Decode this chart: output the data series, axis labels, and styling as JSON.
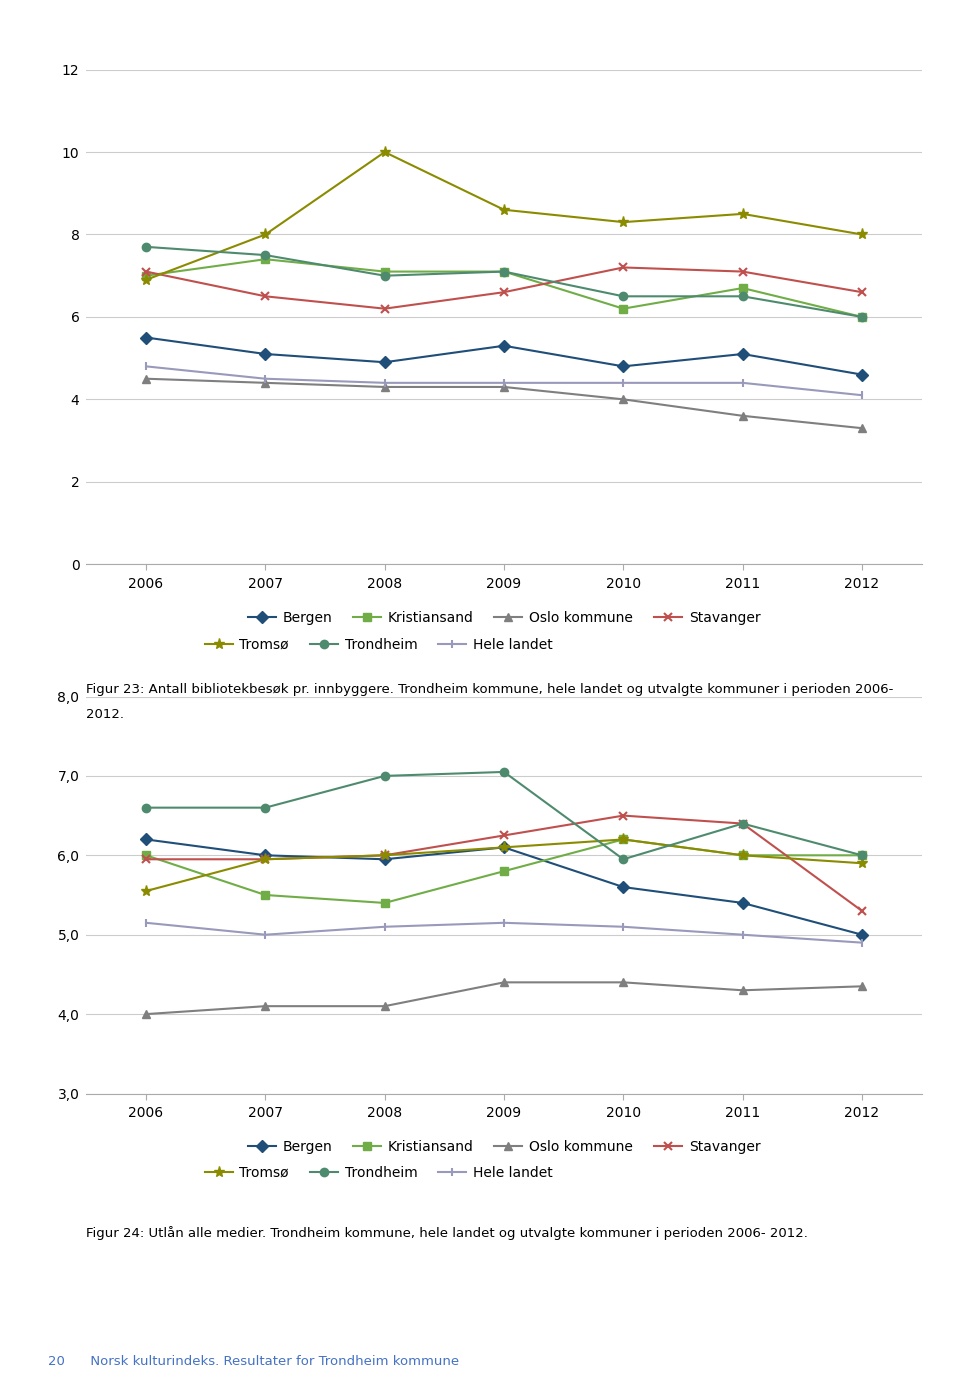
{
  "years": [
    2006,
    2007,
    2008,
    2009,
    2010,
    2011,
    2012
  ],
  "chart1": {
    "ylim": [
      0,
      12
    ],
    "yticks": [
      0,
      2,
      4,
      6,
      8,
      10,
      12
    ],
    "ytick_labels": [
      "0",
      "2",
      "4",
      "6",
      "8",
      "10",
      "12"
    ],
    "series": {
      "Bergen": {
        "values": [
          5.5,
          5.1,
          4.9,
          5.3,
          4.8,
          5.1,
          4.6
        ],
        "color": "#1f4e79",
        "marker": "D"
      },
      "Kristiansand": {
        "values": [
          7.0,
          7.4,
          7.1,
          7.1,
          6.2,
          6.7,
          6.0
        ],
        "color": "#70ad47",
        "marker": "s"
      },
      "Oslo kommune": {
        "values": [
          4.5,
          4.4,
          4.3,
          4.3,
          4.0,
          3.6,
          3.3
        ],
        "color": "#7f7f7f",
        "marker": "^"
      },
      "Stavanger": {
        "values": [
          7.1,
          6.5,
          6.2,
          6.6,
          7.2,
          7.1,
          6.6
        ],
        "color": "#c0504d",
        "marker": "x"
      },
      "Tromsø": {
        "values": [
          6.9,
          8.0,
          10.0,
          8.6,
          8.3,
          8.5,
          8.0
        ],
        "color": "#8b8b00",
        "marker": "*"
      },
      "Trondheim": {
        "values": [
          7.7,
          7.5,
          7.0,
          7.1,
          6.5,
          6.5,
          6.0
        ],
        "color": "#4e8b6e",
        "marker": "o"
      },
      "Hele landet": {
        "values": [
          4.8,
          4.5,
          4.4,
          4.4,
          4.4,
          4.4,
          4.1
        ],
        "color": "#9999bb",
        "marker": "|"
      }
    },
    "caption_line1": "Figur 23: Antall bibliotekbesøk pr. innbyggere. Trondheim kommune, hele landet og utvalgte kommuner i perioden 2006-",
    "caption_line2": "2012."
  },
  "chart2": {
    "ylim": [
      3.0,
      8.0
    ],
    "yticks": [
      3.0,
      4.0,
      5.0,
      6.0,
      7.0,
      8.0
    ],
    "ytick_labels": [
      "3,0",
      "4,0",
      "5,0",
      "6,0",
      "7,0",
      "8,0"
    ],
    "series": {
      "Bergen": {
        "values": [
          6.2,
          6.0,
          5.95,
          6.1,
          5.6,
          5.4,
          5.0
        ],
        "color": "#1f4e79",
        "marker": "D"
      },
      "Kristiansand": {
        "values": [
          6.0,
          5.5,
          5.4,
          5.8,
          6.2,
          6.0,
          6.0
        ],
        "color": "#70ad47",
        "marker": "s"
      },
      "Oslo kommune": {
        "values": [
          4.0,
          4.1,
          4.1,
          4.4,
          4.4,
          4.3,
          4.35
        ],
        "color": "#7f7f7f",
        "marker": "^"
      },
      "Stavanger": {
        "values": [
          5.95,
          5.95,
          6.0,
          6.25,
          6.5,
          6.4,
          5.3
        ],
        "color": "#c0504d",
        "marker": "x"
      },
      "Tromsø": {
        "values": [
          5.55,
          5.95,
          6.0,
          6.1,
          6.2,
          6.0,
          5.9
        ],
        "color": "#8b8b00",
        "marker": "*"
      },
      "Trondheim": {
        "values": [
          6.6,
          6.6,
          7.0,
          7.05,
          5.95,
          6.4,
          6.0
        ],
        "color": "#4e8b6e",
        "marker": "o"
      },
      "Hele landet": {
        "values": [
          5.15,
          5.0,
          5.1,
          5.15,
          5.1,
          5.0,
          4.9
        ],
        "color": "#9999bb",
        "marker": "|"
      }
    },
    "caption": "Figur 24: Utlån alle medier. Trondheim kommune, hele landet og utvalgte kommuner i perioden 2006- 2012."
  },
  "legend_order": [
    "Bergen",
    "Kristiansand",
    "Oslo kommune",
    "Stavanger",
    "Tromsø",
    "Trondheim",
    "Hele landet"
  ],
  "legend_row1": [
    "Bergen",
    "Kristiansand",
    "Oslo kommune",
    "Stavanger"
  ],
  "legend_row2": [
    "Tromsø",
    "Trondheim",
    "Hele landet"
  ],
  "footer": "20      Norsk kulturindeks. Resultater for Trondheim kommune",
  "background_color": "#ffffff"
}
